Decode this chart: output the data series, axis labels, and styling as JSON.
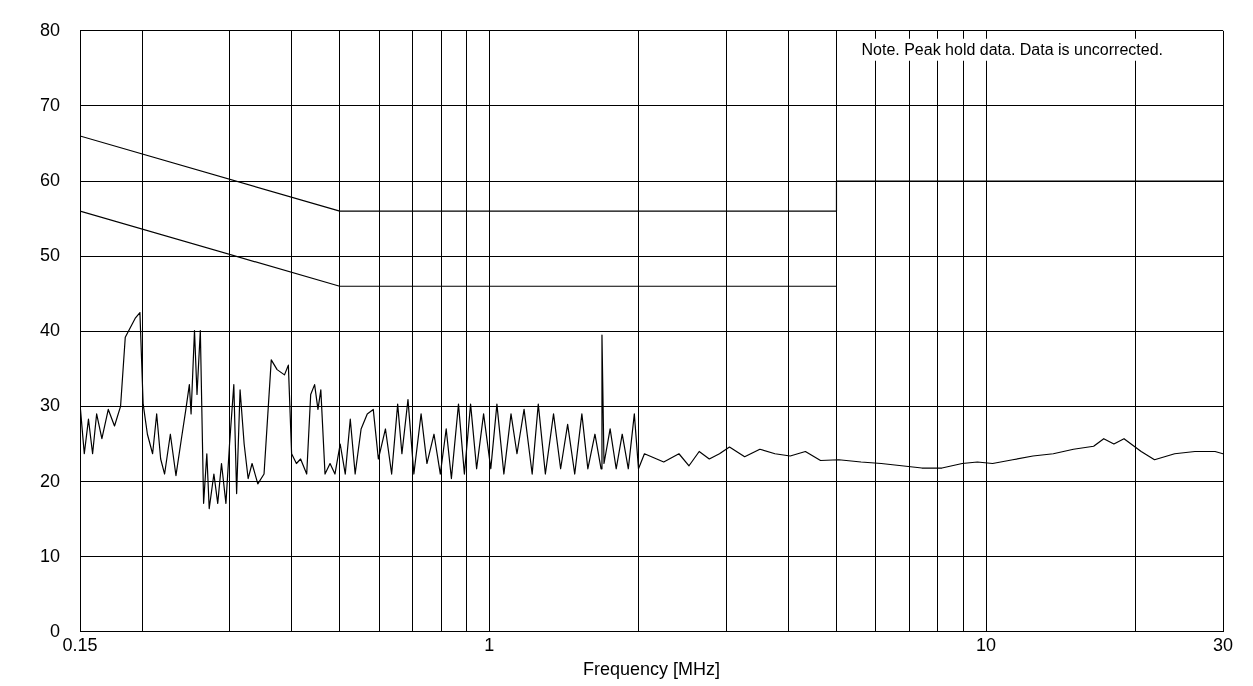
{
  "chart_data": {
    "type": "line",
    "xlabel": "Frequency [MHz]",
    "log": "x",
    "grid": true,
    "legend": false,
    "marker": "none",
    "line_style": "solid",
    "annotations": [
      "Note. Peak hold data. Data is uncorrected."
    ],
    "xlim": [
      0.15,
      30
    ],
    "xticks": [
      {
        "value": 0.15,
        "label": "0.15"
      },
      {
        "value": 0.2,
        "label": null
      },
      {
        "value": 0.3,
        "label": null
      },
      {
        "value": 0.4,
        "label": null
      },
      {
        "value": 0.5,
        "label": null
      },
      {
        "value": 0.6,
        "label": null
      },
      {
        "value": 0.7,
        "label": null
      },
      {
        "value": 0.8,
        "label": null
      },
      {
        "value": 0.9,
        "label": null
      },
      1,
      {
        "value": 2,
        "label": null
      },
      {
        "value": 3,
        "label": null
      },
      {
        "value": 4,
        "label": null
      },
      {
        "value": 5,
        "label": null
      },
      {
        "value": 6,
        "label": null
      },
      {
        "value": 7,
        "label": null
      },
      {
        "value": 8,
        "label": null
      },
      {
        "value": 9,
        "label": null
      },
      10,
      {
        "value": 20,
        "label": null
      },
      30
    ],
    "ylim": [
      0,
      80
    ],
    "yticks": [
      0,
      10,
      20,
      30,
      40,
      50,
      60,
      70,
      80
    ],
    "series": [
      {
        "color": "#000000",
        "x": [
          0.15,
          0.5,
          5,
          5,
          30
        ],
        "values": [
          66,
          56,
          56,
          60,
          60
        ]
      },
      {
        "color": "#000000",
        "x": [
          0.15,
          0.5,
          5
        ],
        "values": [
          56,
          46,
          46
        ]
      },
      {
        "color": "#000000",
        "x": [
          0.15,
          0.153,
          0.156,
          0.159,
          0.162,
          0.166,
          0.171,
          0.176,
          0.181,
          0.185,
          0.194,
          0.198,
          0.201,
          0.205,
          0.21,
          0.214,
          0.218,
          0.222,
          0.228,
          0.234,
          0.24,
          0.245,
          0.249,
          0.251,
          0.255,
          0.258,
          0.262,
          0.266,
          0.27,
          0.273,
          0.279,
          0.284,
          0.289,
          0.295,
          0.3,
          0.306,
          0.31,
          0.315,
          0.321,
          0.327,
          0.333,
          0.342,
          0.352,
          0.364,
          0.374,
          0.387,
          0.394,
          0.4,
          0.409,
          0.417,
          0.429,
          0.437,
          0.445,
          0.452,
          0.458,
          0.467,
          0.478,
          0.489,
          0.501,
          0.513,
          0.525,
          0.537,
          0.552,
          0.568,
          0.584,
          0.598,
          0.618,
          0.636,
          0.654,
          0.667,
          0.686,
          0.705,
          0.729,
          0.749,
          0.774,
          0.797,
          0.819,
          0.839,
          0.867,
          0.891,
          0.917,
          0.943,
          0.974,
          1.007,
          1.036,
          1.07,
          1.106,
          1.137,
          1.175,
          1.22,
          1.255,
          1.297,
          1.347,
          1.392,
          1.438,
          1.486,
          1.536,
          1.579,
          1.632,
          1.679,
          1.686,
          1.702,
          1.751,
          1.801,
          1.852,
          1.905,
          1.959,
          1.997,
          2.053,
          2.245,
          2.409,
          2.524,
          2.646,
          2.773,
          2.907,
          3.045,
          3.267,
          3.505,
          3.76,
          4.035,
          4.329,
          4.644,
          5.055,
          5.604,
          6.153,
          6.762,
          7.427,
          8.154,
          8.955,
          9.609,
          10.31,
          11.32,
          12.43,
          13.66,
          15.0,
          16.47,
          17.26,
          18.09,
          18.96,
          20.53,
          21.84,
          23.98,
          26.34,
          28.92,
          30.0
        ],
        "values": [
          30.3,
          23.7,
          28.3,
          23.7,
          29,
          25.7,
          29.6,
          27.4,
          30,
          39.2,
          41.8,
          42.5,
          30.3,
          26.3,
          23.7,
          29,
          23,
          21,
          26.3,
          20.8,
          25.7,
          29.6,
          32.9,
          29,
          40.1,
          31.6,
          40.1,
          17.1,
          23.7,
          16.4,
          21,
          17.1,
          22.4,
          17.1,
          25,
          32.9,
          18.4,
          32.2,
          25,
          20.4,
          22.4,
          19.7,
          21,
          36.2,
          34.9,
          34.2,
          35.5,
          23.7,
          22.4,
          23,
          21,
          31.6,
          32.9,
          29.6,
          32.2,
          21,
          22.4,
          21,
          25,
          21,
          28.3,
          21,
          27,
          29,
          29.6,
          23,
          27,
          21,
          30.3,
          23.7,
          30.9,
          21,
          29,
          22.4,
          26.3,
          21,
          27,
          20.4,
          30.3,
          21,
          30.3,
          21.7,
          29,
          21.7,
          30.3,
          21,
          29,
          23.7,
          29.6,
          21,
          30.3,
          21,
          29,
          21.7,
          27.6,
          21,
          29,
          21.7,
          26.3,
          21.7,
          39.5,
          22.4,
          27,
          21.7,
          26.3,
          21.7,
          29,
          21.7,
          23.7,
          22.6,
          23.7,
          22.1,
          24,
          23,
          23.7,
          24.6,
          23.3,
          24.3,
          23.7,
          23.4,
          24,
          22.8,
          22.9,
          22.6,
          22.4,
          22.1,
          21.8,
          21.8,
          22.4,
          22.6,
          22.4,
          22.9,
          23.4,
          23.7,
          24.3,
          24.7,
          25.7,
          25,
          25.7,
          24,
          22.9,
          23.7,
          24,
          24,
          23.7
        ]
      }
    ]
  }
}
